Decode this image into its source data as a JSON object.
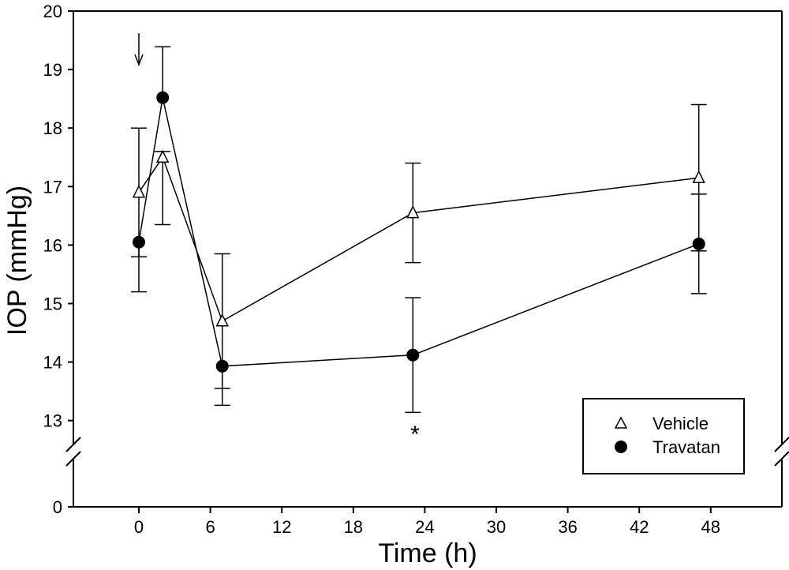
{
  "chart_data": {
    "type": "line",
    "title": "",
    "xlabel": "Time (h)",
    "ylabel": "IOP (mmHg)",
    "xlim": [
      -10,
      60
    ],
    "xticks": [
      0,
      6,
      12,
      18,
      24,
      30,
      36,
      42,
      48
    ],
    "xtick_labels": [
      "0",
      "6",
      "12",
      "18",
      "24",
      "30",
      "36",
      "42",
      "48"
    ],
    "ylim_upper": [
      13,
      20
    ],
    "yticks_upper": [
      13,
      14,
      15,
      16,
      17,
      18,
      19,
      20
    ],
    "ytick_labels": [
      "0",
      "13",
      "14",
      "15",
      "16",
      "17",
      "18",
      "19",
      "20"
    ],
    "y_axis_break": true,
    "grid": false,
    "legend_position": "bottom-right",
    "series": [
      {
        "name": "Vehicle",
        "marker": "open-triangle",
        "x": [
          0,
          2,
          7,
          23,
          47
        ],
        "y": [
          16.9,
          17.5,
          14.7,
          16.55,
          17.15
        ],
        "err_plus": [
          1.1,
          0.1,
          1.15,
          0.85,
          1.25
        ],
        "err_minus": [
          1.1,
          1.15,
          1.15,
          0.85,
          1.25
        ]
      },
      {
        "name": "Travatan",
        "marker": "filled-circle",
        "x": [
          0,
          2,
          7,
          23,
          47
        ],
        "y": [
          16.05,
          18.52,
          13.93,
          14.12,
          16.02
        ],
        "err_plus": [
          0.0,
          0.87,
          0.0,
          0.98,
          0.85
        ],
        "err_minus": [
          0.85,
          0.0,
          0.67,
          0.98,
          0.85
        ]
      }
    ],
    "annotations": [
      {
        "text": "*",
        "x": 23,
        "y": 12.9
      },
      {
        "text": "arrow-down",
        "x": 0,
        "y": 19.6
      }
    ],
    "colors": {
      "line": "#000000",
      "marker_fill_vehicle": "#ffffff",
      "marker_fill_travatan": "#000000"
    }
  }
}
